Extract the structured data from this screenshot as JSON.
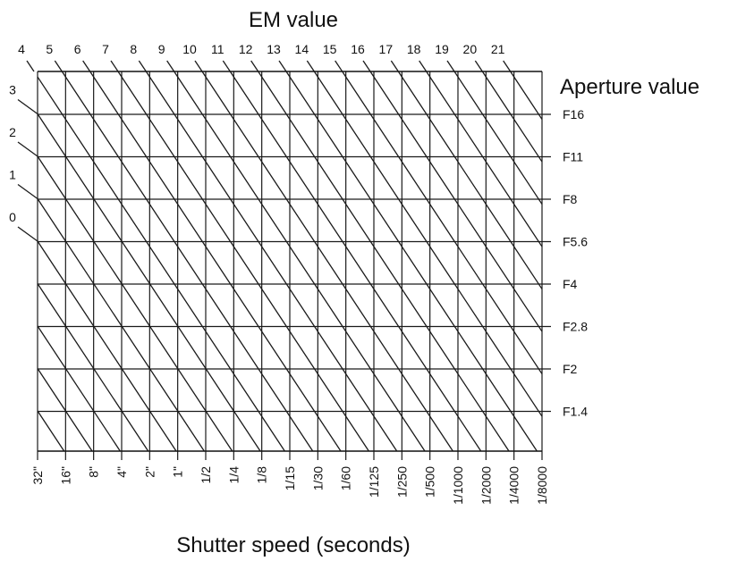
{
  "diagram": {
    "em_axis_title": "EM value",
    "aperture_axis_title": "Aperture value",
    "shutter_axis_title": "Shutter speed (seconds)",
    "em_top_labels": [
      "4",
      "5",
      "6",
      "7",
      "8",
      "9",
      "10",
      "11",
      "12",
      "13",
      "14",
      "15",
      "16",
      "17",
      "18",
      "19",
      "20",
      "21"
    ],
    "em_left_labels": [
      "3",
      "2",
      "1",
      "0"
    ],
    "aperture_labels": [
      "F16",
      "F11",
      "F8",
      "F5.6",
      "F4",
      "F2.8",
      "F2",
      "F1.4"
    ],
    "shutter_labels": [
      "32\"",
      "16\"",
      "8\"",
      "4\"",
      "2\"",
      "1\"",
      "1/2",
      "1/4",
      "1/8",
      "1/15",
      "1/30",
      "1/60",
      "1/125",
      "1/250",
      "1/500",
      "1/1000",
      "1/2000",
      "1/4000",
      "1/8000"
    ],
    "line_color": "#1a1a1a"
  }
}
